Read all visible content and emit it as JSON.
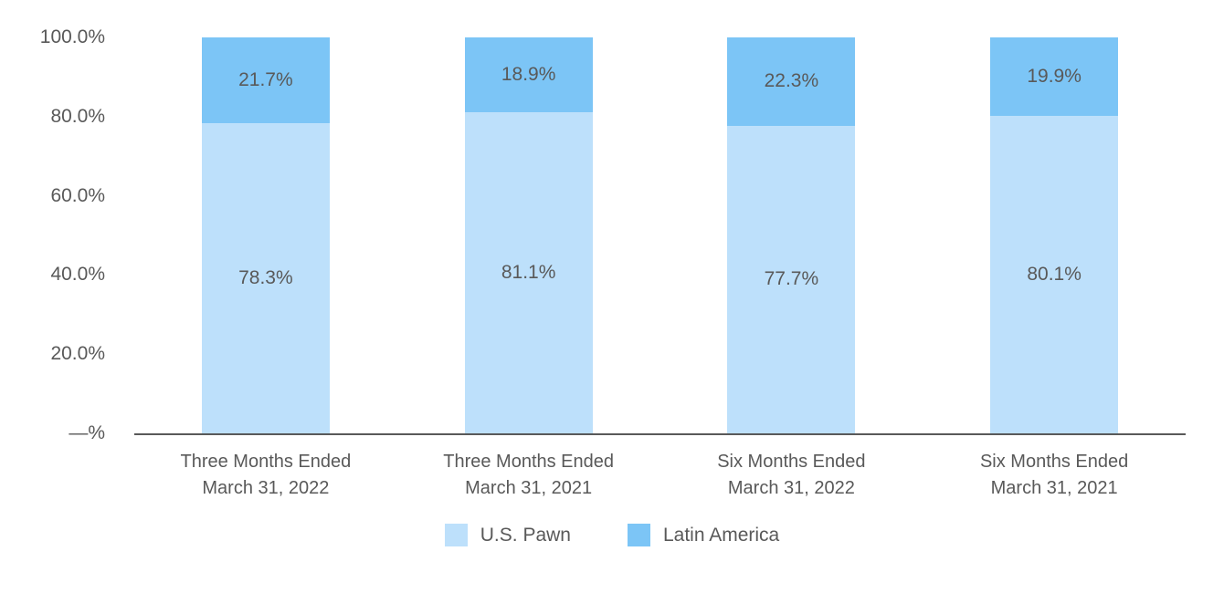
{
  "chart_data": {
    "type": "bar",
    "stacked": true,
    "title": "",
    "xlabel": "",
    "ylabel": "",
    "grid": false,
    "legend_position": "bottom",
    "categories": [
      {
        "line1": "Three Months Ended",
        "line2": "March 31, 2022"
      },
      {
        "line1": "Three Months Ended",
        "line2": "March 31, 2021"
      },
      {
        "line1": "Six Months Ended",
        "line2": "March 31, 2022"
      },
      {
        "line1": "Six Months Ended",
        "line2": "March 31, 2021"
      }
    ],
    "series": [
      {
        "name": "U.S. Pawn",
        "color": "#BDE0FB",
        "values": [
          78.3,
          81.1,
          77.7,
          80.1
        ],
        "labels": [
          "78.3%",
          "81.1%",
          "77.7%",
          "80.1%"
        ]
      },
      {
        "name": "Latin America",
        "color": "#7CC5F6",
        "values": [
          21.7,
          18.9,
          22.3,
          19.9
        ],
        "labels": [
          "21.7%",
          "18.9%",
          "22.3%",
          "19.9%"
        ]
      }
    ],
    "y_axis": {
      "min": 0,
      "max": 100,
      "tick_values": [
        100,
        80,
        60,
        40,
        20,
        0
      ],
      "tick_labels": [
        "100.0%",
        "80.0%",
        "60.0%",
        "40.0%",
        "20.0%",
        "—%"
      ]
    },
    "legend": [
      {
        "label": "U.S. Pawn",
        "color": "#BDE0FB"
      },
      {
        "label": "Latin America",
        "color": "#7CC5F6"
      }
    ]
  },
  "colors": {
    "text": "#595959",
    "axis_line": "#595959",
    "background": "#FFFFFF"
  }
}
